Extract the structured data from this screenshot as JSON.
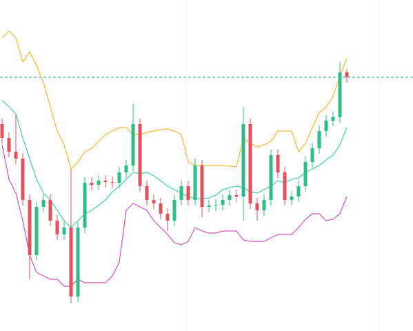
{
  "chart_data": {
    "type": "candlestick",
    "xlim": [
      -3,
      596
    ],
    "ylim": [
      0,
      480
    ],
    "up_color": "#2ebd85",
    "down_color": "#e0525d",
    "price_line": 368,
    "price_line_color": "#26a69a",
    "x": [
      0,
      10,
      20,
      30,
      40,
      50,
      60,
      70,
      80,
      90,
      100,
      110,
      120,
      130,
      140,
      150,
      160,
      170,
      180,
      190,
      200,
      210,
      220,
      230,
      240,
      250,
      260,
      270,
      280,
      290,
      300,
      310,
      320,
      330,
      340,
      350,
      360,
      370,
      380,
      390,
      400,
      410,
      420,
      430,
      440,
      450,
      460,
      470,
      480,
      490,
      500
    ],
    "open": [
      300,
      280,
      260,
      250,
      190,
      110,
      180,
      190,
      160,
      140,
      150,
      50,
      150,
      215,
      212,
      218,
      216,
      215,
      230,
      240,
      300,
      210,
      190,
      185,
      170,
      160,
      190,
      210,
      190,
      240,
      180,
      182,
      183,
      190,
      197,
      195,
      300,
      185,
      175,
      190,
      255,
      230,
      190,
      195,
      210,
      245,
      265,
      290,
      305,
      310,
      375
    ],
    "high": [
      308,
      288,
      315,
      258,
      198,
      188,
      198,
      198,
      168,
      158,
      235,
      158,
      223,
      223,
      226,
      226,
      224,
      238,
      248,
      330,
      308,
      218,
      198,
      193,
      178,
      198,
      218,
      218,
      250,
      248,
      190,
      191,
      198,
      205,
      205,
      325,
      308,
      193,
      198,
      263,
      263,
      238,
      203,
      218,
      253,
      273,
      298,
      313,
      318,
      390,
      380
    ],
    "low": [
      272,
      252,
      242,
      182,
      75,
      102,
      172,
      152,
      132,
      132,
      40,
      42,
      142,
      204,
      204,
      208,
      207,
      207,
      222,
      232,
      202,
      182,
      177,
      162,
      145,
      152,
      182,
      182,
      182,
      165,
      172,
      174,
      175,
      182,
      187,
      160,
      177,
      160,
      167,
      182,
      222,
      182,
      182,
      187,
      202,
      237,
      257,
      282,
      297,
      302,
      360
    ],
    "close": [
      280,
      260,
      250,
      190,
      110,
      180,
      190,
      160,
      140,
      150,
      50,
      150,
      215,
      212,
      218,
      216,
      215,
      230,
      240,
      300,
      210,
      190,
      185,
      170,
      160,
      190,
      210,
      190,
      240,
      180,
      182,
      183,
      190,
      197,
      195,
      300,
      185,
      175,
      190,
      255,
      230,
      190,
      195,
      210,
      245,
      265,
      290,
      305,
      310,
      375,
      368
    ],
    "series": [
      {
        "color": "#f5b82e",
        "values": [
          425,
          435,
          425,
          390,
          405,
          385,
          360,
          325,
          290,
          270,
          235,
          245,
          260,
          265,
          275,
          285,
          290,
          295,
          295,
          285,
          285,
          288,
          290,
          292,
          293,
          290,
          285,
          245,
          240,
          240,
          240,
          240,
          240,
          239,
          238,
          280,
          272,
          267,
          270,
          275,
          290,
          290,
          290,
          260,
          272,
          295,
          317,
          325,
          340,
          370,
          395
        ]
      },
      {
        "color": "#3ecfa5",
        "values": [
          335,
          325,
          315,
          280,
          250,
          220,
          200,
          190,
          175,
          160,
          150,
          160,
          170,
          175,
          182,
          190,
          202,
          210,
          220,
          230,
          228,
          230,
          225,
          218,
          210,
          205,
          200,
          195,
          192,
          192,
          193,
          197,
          205,
          208,
          210,
          208,
          202,
          200,
          205,
          210,
          218,
          215,
          220,
          222,
          230,
          235,
          240,
          248,
          255,
          270,
          295
        ]
      },
      {
        "color": "#d44fc9",
        "values": [
          270,
          220,
          200,
          160,
          110,
          85,
          80,
          75,
          75,
          65,
          65,
          75,
          70,
          70,
          70,
          70,
          80,
          100,
          175,
          185,
          180,
          175,
          160,
          150,
          140,
          128,
          125,
          130,
          150,
          145,
          142,
          142,
          145,
          145,
          145,
          132,
          130,
          130,
          130,
          135,
          140,
          140,
          140,
          150,
          162,
          170,
          170,
          160,
          162,
          170,
          195
        ]
      }
    ]
  }
}
